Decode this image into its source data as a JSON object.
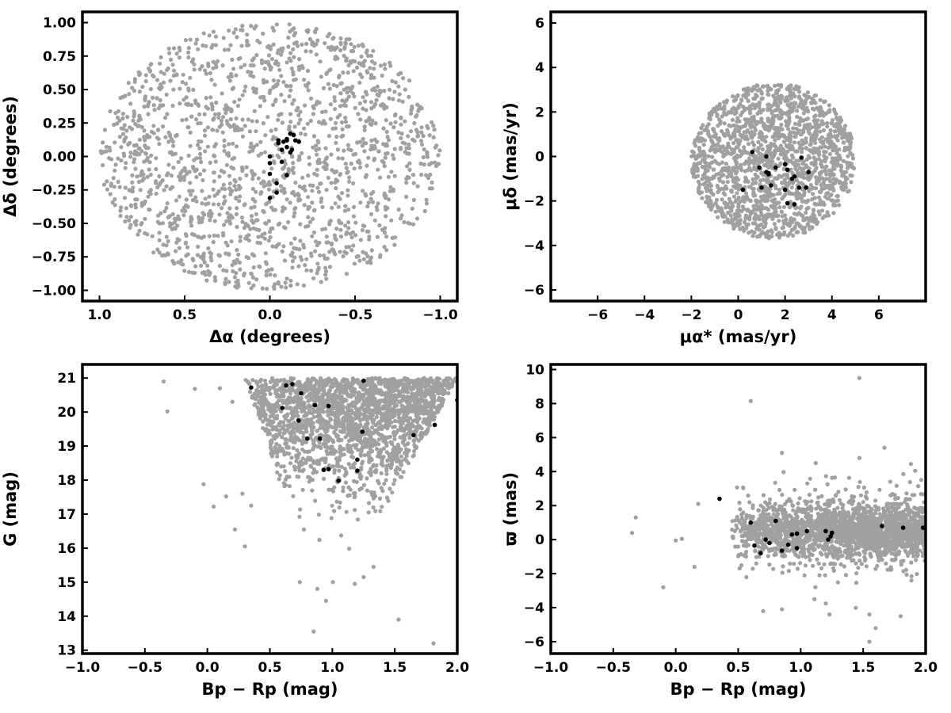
{
  "colors": {
    "field": "#a0a0a0",
    "members": "#000000",
    "frame": "#000000"
  },
  "chart_data": [
    {
      "type": "scatter",
      "panel": "sky-position",
      "xlabel": "Δα (degrees)",
      "ylabel": "Δδ (degrees)",
      "xlim": [
        1.1,
        -1.1
      ],
      "ylim": [
        -1.08,
        1.08
      ],
      "xticks": [
        1.0,
        0.5,
        0.0,
        -0.5,
        -1.0
      ],
      "xtick_labels": [
        "1.0",
        "0.5",
        "0.0",
        "−0.5",
        "−1.0"
      ],
      "yticks": [
        -1.0,
        -0.75,
        -0.5,
        -0.25,
        0.0,
        0.25,
        0.5,
        0.75,
        1.0
      ],
      "ytick_labels": [
        "−1.00",
        "−0.75",
        "−0.50",
        "−0.25",
        "0.00",
        "0.25",
        "0.50",
        "0.75",
        "1.00"
      ],
      "field_distribution": {
        "shape": "disk",
        "center": [
          0,
          0
        ],
        "radius": 1.0,
        "count": 1700
      },
      "members": [
        [
          -0.14,
          0.16
        ],
        [
          -0.15,
          0.12
        ],
        [
          -0.12,
          0.17
        ],
        [
          -0.1,
          0.07
        ],
        [
          -0.07,
          0.05
        ],
        [
          -0.05,
          0.1
        ],
        [
          0.0,
          0.0
        ],
        [
          0.0,
          -0.05
        ],
        [
          -0.05,
          0.12
        ],
        [
          -0.08,
          0.11
        ],
        [
          -0.1,
          0.12
        ],
        [
          0.0,
          -0.13
        ],
        [
          0.0,
          -0.31
        ],
        [
          -0.04,
          -0.2
        ],
        [
          -0.04,
          -0.27
        ],
        [
          -0.07,
          -0.04
        ],
        [
          -0.1,
          0.13
        ],
        [
          -0.12,
          0.03
        ],
        [
          -0.13,
          0.05
        ],
        [
          -0.17,
          0.11
        ],
        [
          -0.1,
          -0.14
        ]
      ]
    },
    {
      "type": "scatter",
      "panel": "proper-motion",
      "xlabel": "μα* (mas/yr)",
      "ylabel": "μδ (mas/yr)",
      "xlim": [
        -8,
        8
      ],
      "ylim": [
        -6.5,
        6.5
      ],
      "xticks": [
        -6,
        -4,
        -2,
        0,
        2,
        4,
        6
      ],
      "xtick_labels": [
        "−6",
        "−4",
        "−2",
        "0",
        "2",
        "4",
        "6"
      ],
      "yticks": [
        -6,
        -4,
        -2,
        0,
        2,
        4,
        6
      ],
      "ytick_labels": [
        "−6",
        "−4",
        "−2",
        "0",
        "2",
        "4",
        "6"
      ],
      "field_distribution": {
        "shape": "disk",
        "center": [
          1.5,
          -0.2
        ],
        "radius": 3.5,
        "count": 1700
      },
      "members": [
        [
          0.6,
          0.2
        ],
        [
          0.9,
          -0.5
        ],
        [
          1.2,
          -0.7
        ],
        [
          1.3,
          -0.75
        ],
        [
          1.3,
          -0.8
        ],
        [
          2.0,
          -0.35
        ],
        [
          2.1,
          -0.6
        ],
        [
          2.3,
          -1.0
        ],
        [
          2.4,
          -0.9
        ],
        [
          2.7,
          -0.05
        ],
        [
          3.0,
          -0.7
        ],
        [
          0.2,
          -1.5
        ],
        [
          1.0,
          -1.4
        ],
        [
          1.4,
          -1.3
        ],
        [
          2.0,
          -1.5
        ],
        [
          2.6,
          -1.4
        ],
        [
          2.9,
          -1.4
        ],
        [
          2.1,
          -2.1
        ],
        [
          2.4,
          -2.15
        ],
        [
          1.2,
          0.0
        ],
        [
          1.6,
          -0.5
        ]
      ]
    },
    {
      "type": "scatter",
      "panel": "cmd",
      "xlabel": "Bp − Rp (mag)",
      "ylabel": "G (mag)",
      "xlim": [
        -1.0,
        2.0
      ],
      "ylim": [
        12.9,
        21.4
      ],
      "y_inverted": false,
      "xticks": [
        -1.0,
        -0.5,
        0.0,
        0.5,
        1.0,
        1.5,
        2.0
      ],
      "xtick_labels": [
        "−1.0",
        "−0.5",
        "0.0",
        "0.5",
        "1.0",
        "1.5",
        "2.0"
      ],
      "yticks": [
        13,
        14,
        15,
        16,
        17,
        18,
        19,
        20,
        21
      ],
      "ytick_labels": [
        "13",
        "14",
        "15",
        "16",
        "17",
        "18",
        "19",
        "20",
        "21"
      ],
      "field_distribution": {
        "shape": "cmd-wedge",
        "count": 2200
      },
      "members": [
        [
          0.35,
          20.72
        ],
        [
          0.6,
          20.12
        ],
        [
          0.63,
          20.78
        ],
        [
          0.68,
          20.82
        ],
        [
          0.73,
          19.75
        ],
        [
          0.75,
          20.55
        ],
        [
          0.8,
          19.22
        ],
        [
          0.86,
          20.2
        ],
        [
          0.9,
          19.22
        ],
        [
          0.93,
          18.3
        ],
        [
          0.97,
          18.32
        ],
        [
          0.97,
          20.18
        ],
        [
          1.05,
          17.98
        ],
        [
          1.2,
          18.6
        ],
        [
          1.2,
          18.28
        ],
        [
          1.24,
          19.42
        ],
        [
          1.25,
          20.92
        ],
        [
          1.65,
          19.32
        ],
        [
          1.82,
          19.62
        ],
        [
          2.0,
          20.35
        ]
      ]
    },
    {
      "type": "scatter",
      "panel": "parallax",
      "xlabel": "Bp − Rp (mag)",
      "ylabel": "ϖ (mas)",
      "xlim": [
        -1.0,
        2.0
      ],
      "ylim": [
        -6.7,
        10.3
      ],
      "xticks": [
        -1.0,
        -0.5,
        0.0,
        0.5,
        1.0,
        1.5,
        2.0
      ],
      "xtick_labels": [
        "−1.0",
        "−0.5",
        "0.0",
        "0.5",
        "1.0",
        "1.5",
        "2.0"
      ],
      "yticks": [
        -6,
        -4,
        -2,
        0,
        2,
        4,
        6,
        8,
        10
      ],
      "ytick_labels": [
        "−6",
        "−4",
        "−2",
        "0",
        "2",
        "4",
        "6",
        "8",
        "10"
      ],
      "field_distribution": {
        "shape": "band",
        "count": 2200
      },
      "members": [
        [
          0.35,
          2.4
        ],
        [
          0.6,
          1.0
        ],
        [
          0.63,
          -0.35
        ],
        [
          0.68,
          -0.8
        ],
        [
          0.72,
          0.0
        ],
        [
          0.75,
          -0.2
        ],
        [
          0.8,
          1.1
        ],
        [
          0.85,
          -0.65
        ],
        [
          0.9,
          -0.3
        ],
        [
          0.93,
          0.3
        ],
        [
          0.97,
          -0.5
        ],
        [
          0.97,
          0.35
        ],
        [
          1.05,
          0.5
        ],
        [
          1.2,
          0.5
        ],
        [
          1.22,
          0.0
        ],
        [
          1.24,
          0.2
        ],
        [
          1.25,
          0.4
        ],
        [
          1.65,
          0.8
        ],
        [
          1.82,
          0.7
        ],
        [
          1.98,
          0.7
        ]
      ]
    }
  ]
}
